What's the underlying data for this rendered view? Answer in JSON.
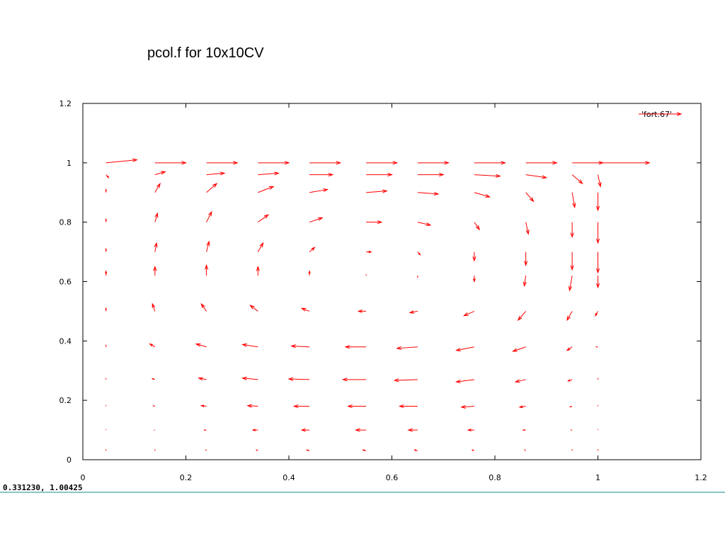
{
  "chart_data": {
    "type": "quiver",
    "title": "pcol.f for 10x10CV",
    "xlim": [
      0,
      1.2
    ],
    "ylim": [
      0,
      1.2
    ],
    "xticks": [
      0,
      0.2,
      0.4,
      0.6,
      0.8,
      1,
      1.2
    ],
    "yticks": [
      0,
      0.2,
      0.4,
      0.6,
      0.8,
      1,
      1.2
    ],
    "legend": "top-right",
    "series": [
      {
        "name": "'fort.67'",
        "color": "#ff0000",
        "x": [
          0.045,
          0.14,
          0.24,
          0.34,
          0.44,
          0.55,
          0.65,
          0.76,
          0.86,
          0.95,
          1.0,
          0.045,
          0.14,
          0.24,
          0.34,
          0.44,
          0.55,
          0.65,
          0.76,
          0.86,
          0.95,
          1.0,
          0.045,
          0.14,
          0.24,
          0.34,
          0.44,
          0.55,
          0.65,
          0.76,
          0.86,
          0.95,
          1.0,
          0.045,
          0.14,
          0.24,
          0.34,
          0.44,
          0.55,
          0.65,
          0.76,
          0.86,
          0.95,
          1.0,
          0.045,
          0.14,
          0.24,
          0.34,
          0.44,
          0.55,
          0.65,
          0.76,
          0.86,
          0.95,
          1.0,
          0.045,
          0.14,
          0.24,
          0.34,
          0.44,
          0.55,
          0.65,
          0.76,
          0.86,
          0.95,
          1.0,
          0.045,
          0.14,
          0.24,
          0.34,
          0.44,
          0.55,
          0.65,
          0.76,
          0.86,
          0.95,
          1.0,
          0.045,
          0.14,
          0.24,
          0.34,
          0.44,
          0.55,
          0.65,
          0.76,
          0.86,
          0.95,
          1.0,
          0.045,
          0.14,
          0.24,
          0.34,
          0.44,
          0.55,
          0.65,
          0.76,
          0.86,
          0.95,
          1.0,
          0.045,
          0.14,
          0.24,
          0.34,
          0.44,
          0.55,
          0.65,
          0.76,
          0.86,
          0.95,
          1.0,
          0.045,
          0.14,
          0.24,
          0.34,
          0.44,
          0.55,
          0.65,
          0.76,
          0.86,
          0.95,
          1.0,
          0.045,
          0.14,
          0.24,
          0.34,
          0.44,
          0.55,
          0.65,
          0.76,
          0.86,
          0.95,
          1.0
        ],
        "y": [
          1.0,
          1.0,
          1.0,
          1.0,
          1.0,
          1.0,
          1.0,
          1.0,
          1.0,
          1.0,
          1.0,
          0.96,
          0.96,
          0.96,
          0.96,
          0.96,
          0.96,
          0.96,
          0.96,
          0.96,
          0.96,
          0.96,
          0.9,
          0.9,
          0.9,
          0.9,
          0.9,
          0.9,
          0.9,
          0.9,
          0.9,
          0.9,
          0.9,
          0.8,
          0.8,
          0.8,
          0.8,
          0.8,
          0.8,
          0.8,
          0.8,
          0.8,
          0.8,
          0.8,
          0.7,
          0.7,
          0.7,
          0.7,
          0.7,
          0.7,
          0.7,
          0.7,
          0.7,
          0.7,
          0.7,
          0.62,
          0.62,
          0.62,
          0.62,
          0.62,
          0.62,
          0.62,
          0.62,
          0.62,
          0.62,
          0.62,
          0.5,
          0.5,
          0.5,
          0.5,
          0.5,
          0.5,
          0.5,
          0.5,
          0.5,
          0.5,
          0.5,
          0.38,
          0.38,
          0.38,
          0.38,
          0.38,
          0.38,
          0.38,
          0.38,
          0.38,
          0.38,
          0.38,
          0.27,
          0.27,
          0.27,
          0.27,
          0.27,
          0.27,
          0.27,
          0.27,
          0.27,
          0.27,
          0.27,
          0.18,
          0.18,
          0.18,
          0.18,
          0.18,
          0.18,
          0.18,
          0.18,
          0.18,
          0.18,
          0.18,
          0.1,
          0.1,
          0.1,
          0.1,
          0.1,
          0.1,
          0.1,
          0.1,
          0.1,
          0.1,
          0.1,
          0.03,
          0.03,
          0.03,
          0.03,
          0.03,
          0.03,
          0.03,
          0.03,
          0.03,
          0.03,
          0.03
        ],
        "u": [
          0.06,
          0.06,
          0.06,
          0.06,
          0.06,
          0.06,
          0.06,
          0.06,
          0.06,
          0.06,
          0.1,
          0.005,
          0.02,
          0.035,
          0.04,
          0.045,
          0.05,
          0.05,
          0.05,
          0.04,
          0.02,
          0.005,
          0,
          0.01,
          0.02,
          0.03,
          0.035,
          0.04,
          0.04,
          0.03,
          0.015,
          0.005,
          0,
          0,
          0.005,
          0.01,
          0.02,
          0.025,
          0.03,
          0.025,
          0.01,
          0.005,
          0,
          0,
          0,
          0.003,
          0.005,
          0.01,
          0.01,
          0.01,
          0.005,
          0,
          0,
          0,
          0,
          0,
          0,
          0,
          0,
          0,
          0,
          0,
          0,
          -0.003,
          -0.005,
          0,
          0,
          -0.005,
          -0.01,
          -0.015,
          -0.015,
          -0.015,
          -0.015,
          -0.02,
          -0.015,
          -0.01,
          -0.005,
          0,
          -0.01,
          -0.02,
          -0.03,
          -0.035,
          -0.04,
          -0.04,
          -0.035,
          -0.025,
          -0.01,
          -0.003,
          0,
          -0.005,
          -0.015,
          -0.03,
          -0.04,
          -0.045,
          -0.045,
          -0.035,
          -0.02,
          -0.008,
          0,
          0,
          -0.003,
          -0.01,
          -0.02,
          -0.03,
          -0.035,
          -0.035,
          -0.025,
          -0.012,
          -0.004,
          0,
          0,
          -0.001,
          -0.004,
          -0.01,
          -0.015,
          -0.02,
          -0.018,
          -0.012,
          -0.005,
          -0.002,
          0,
          0,
          0,
          -0.001,
          -0.003,
          -0.005,
          -0.006,
          -0.006,
          -0.004,
          -0.002,
          0,
          0
        ],
        "v": [
          0.01,
          0,
          0,
          0,
          0,
          0,
          0,
          0,
          0,
          0,
          0,
          -0.01,
          0.01,
          0.005,
          0.005,
          0,
          0,
          0,
          -0.005,
          -0.01,
          -0.03,
          -0.04,
          0.01,
          0.03,
          0.03,
          0.02,
          0.01,
          0.005,
          -0.005,
          -0.015,
          -0.03,
          -0.05,
          -0.06,
          0.01,
          0.03,
          0.035,
          0.025,
          0.015,
          0,
          -0.01,
          -0.025,
          -0.04,
          -0.05,
          -0.07,
          0.01,
          0.03,
          0.035,
          0.03,
          0.015,
          0,
          -0.01,
          -0.03,
          -0.045,
          -0.06,
          -0.07,
          0.015,
          0.03,
          0.035,
          0.03,
          0.015,
          0.003,
          -0.005,
          -0.02,
          -0.035,
          -0.05,
          -0.04,
          0.01,
          0.025,
          0.025,
          0.02,
          0.01,
          0,
          -0.005,
          -0.015,
          -0.03,
          -0.03,
          -0.015,
          0.005,
          0.01,
          0.01,
          0.008,
          0.003,
          0,
          -0.005,
          -0.012,
          -0.015,
          -0.012,
          0,
          0.003,
          0.003,
          0.005,
          0.005,
          0.002,
          0,
          -0.003,
          -0.008,
          -0.008,
          -0.005,
          0.003,
          0.002,
          0.002,
          0.002,
          0.002,
          0,
          0,
          0,
          -0.003,
          -0.003,
          -0.002,
          0.002,
          0.001,
          0,
          0,
          0,
          0,
          0,
          0,
          0,
          0,
          0,
          0.001,
          0.003,
          0.003,
          0.003,
          0.003,
          0.003,
          0.003,
          0.003,
          0.003,
          0.003,
          0.003,
          0.003
        ]
      }
    ]
  },
  "status_bar": {
    "text": "0.331230, 1.00425"
  }
}
